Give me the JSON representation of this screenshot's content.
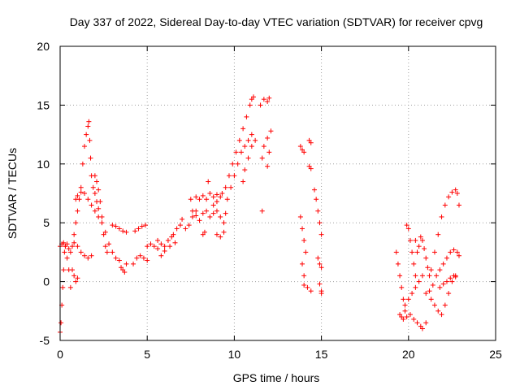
{
  "chart_data": {
    "type": "scatter",
    "title": "Day 337 of 2022, Sidereal Day-to-day VTEC variation (SDTVAR) for receiver cpvg",
    "xlabel": "GPS time / hours",
    "ylabel": "SDTVAR / TECUs",
    "xlim": [
      0,
      25
    ],
    "ylim": [
      -5,
      20
    ],
    "xticks": [
      0,
      5,
      10,
      15,
      20,
      25
    ],
    "yticks": [
      -5,
      0,
      5,
      10,
      15,
      20
    ],
    "grid": true,
    "marker": "+",
    "color": "#ff0000",
    "series": [
      {
        "name": "SDTVAR",
        "points": [
          [
            0.0,
            -4.3
          ],
          [
            0.05,
            -3.5
          ],
          [
            0.1,
            -2.0
          ],
          [
            0.15,
            -0.5
          ],
          [
            0.2,
            1.0
          ],
          [
            0.25,
            2.5
          ],
          [
            0.3,
            3.0
          ],
          [
            0.4,
            2.0
          ],
          [
            0.5,
            1.0
          ],
          [
            0.6,
            -0.5
          ],
          [
            0.0,
            3.0
          ],
          [
            0.1,
            3.2
          ],
          [
            0.2,
            3.3
          ],
          [
            0.3,
            3.0
          ],
          [
            0.4,
            3.2
          ],
          [
            0.5,
            2.8
          ],
          [
            0.6,
            2.5
          ],
          [
            0.7,
            3.0
          ],
          [
            0.8,
            3.3
          ],
          [
            0.8,
            4.0
          ],
          [
            0.9,
            5.0
          ],
          [
            1.0,
            6.0
          ],
          [
            1.1,
            7.0
          ],
          [
            1.2,
            8.0
          ],
          [
            1.3,
            10.0
          ],
          [
            1.4,
            11.5
          ],
          [
            1.5,
            12.5
          ],
          [
            1.6,
            13.2
          ],
          [
            1.65,
            13.6
          ],
          [
            1.7,
            12.0
          ],
          [
            1.75,
            10.5
          ],
          [
            1.8,
            9.0
          ],
          [
            1.9,
            8.0
          ],
          [
            2.0,
            7.5
          ],
          [
            2.1,
            6.8
          ],
          [
            2.2,
            6.2
          ],
          [
            0.9,
            7.0
          ],
          [
            1.0,
            7.3
          ],
          [
            1.2,
            7.6
          ],
          [
            1.4,
            7.5
          ],
          [
            1.6,
            7.0
          ],
          [
            1.8,
            6.5
          ],
          [
            2.0,
            6.0
          ],
          [
            2.2,
            5.5
          ],
          [
            2.4,
            5.0
          ],
          [
            2.6,
            4.2
          ],
          [
            2.8,
            3.2
          ],
          [
            3.0,
            2.5
          ],
          [
            1.0,
            3.0
          ],
          [
            1.2,
            2.5
          ],
          [
            1.4,
            2.2
          ],
          [
            1.6,
            2.0
          ],
          [
            1.8,
            2.2
          ],
          [
            2.0,
            9.0
          ],
          [
            2.1,
            8.5
          ],
          [
            2.2,
            7.8
          ],
          [
            2.3,
            6.8
          ],
          [
            2.4,
            5.5
          ],
          [
            2.5,
            4.0
          ],
          [
            2.6,
            3.0
          ],
          [
            2.7,
            2.5
          ],
          [
            0.7,
            1.0
          ],
          [
            0.8,
            0.5
          ],
          [
            0.9,
            0.0
          ],
          [
            1.0,
            0.3
          ],
          [
            3.0,
            4.8
          ],
          [
            3.2,
            4.7
          ],
          [
            3.4,
            4.5
          ],
          [
            3.6,
            4.3
          ],
          [
            3.8,
            4.2
          ],
          [
            3.2,
            2.0
          ],
          [
            3.4,
            1.8
          ],
          [
            3.5,
            1.2
          ],
          [
            3.6,
            1.0
          ],
          [
            3.7,
            0.8
          ],
          [
            3.8,
            1.5
          ],
          [
            4.2,
            1.5
          ],
          [
            4.4,
            2.0
          ],
          [
            4.6,
            2.2
          ],
          [
            4.8,
            2.0
          ],
          [
            5.0,
            1.8
          ],
          [
            4.3,
            4.3
          ],
          [
            4.5,
            4.5
          ],
          [
            4.7,
            4.7
          ],
          [
            4.9,
            4.8
          ],
          [
            5.0,
            3.0
          ],
          [
            5.2,
            3.2
          ],
          [
            5.4,
            3.0
          ],
          [
            5.6,
            3.5
          ],
          [
            5.8,
            3.2
          ],
          [
            6.0,
            3.0
          ],
          [
            6.2,
            3.5
          ],
          [
            6.4,
            3.8
          ],
          [
            6.6,
            3.3
          ],
          [
            5.6,
            2.8
          ],
          [
            5.8,
            2.2
          ],
          [
            6.0,
            2.6
          ],
          [
            6.3,
            3.0
          ],
          [
            6.5,
            4.0
          ],
          [
            6.7,
            4.5
          ],
          [
            6.9,
            4.8
          ],
          [
            7.0,
            5.3
          ],
          [
            7.2,
            4.5
          ],
          [
            7.4,
            4.8
          ],
          [
            7.6,
            5.5
          ],
          [
            7.8,
            6.0
          ],
          [
            7.5,
            7.0
          ],
          [
            7.8,
            7.2
          ],
          [
            8.0,
            7.0
          ],
          [
            8.2,
            7.3
          ],
          [
            8.4,
            7.0
          ],
          [
            8.6,
            7.5
          ],
          [
            8.8,
            7.2
          ],
          [
            9.0,
            7.4
          ],
          [
            9.2,
            7.2
          ],
          [
            7.6,
            6.0
          ],
          [
            7.8,
            5.6
          ],
          [
            8.0,
            5.2
          ],
          [
            8.2,
            5.8
          ],
          [
            8.4,
            6.0
          ],
          [
            8.6,
            5.5
          ],
          [
            8.8,
            5.8
          ],
          [
            9.0,
            6.0
          ],
          [
            8.5,
            8.5
          ],
          [
            8.8,
            6.5
          ],
          [
            9.0,
            6.8
          ],
          [
            9.2,
            5.5
          ],
          [
            9.4,
            5.0
          ],
          [
            9.5,
            5.8
          ],
          [
            8.2,
            4.0
          ],
          [
            8.3,
            4.2
          ],
          [
            9.0,
            4.0
          ],
          [
            9.2,
            3.8
          ],
          [
            9.4,
            4.2
          ],
          [
            9.3,
            7.5
          ],
          [
            9.5,
            8.0
          ],
          [
            9.7,
            9.0
          ],
          [
            9.9,
            10.0
          ],
          [
            10.1,
            11.0
          ],
          [
            10.3,
            12.0
          ],
          [
            10.5,
            13.0
          ],
          [
            10.7,
            14.0
          ],
          [
            10.9,
            15.0
          ],
          [
            11.0,
            15.5
          ],
          [
            11.1,
            15.7
          ],
          [
            9.6,
            7.0
          ],
          [
            9.8,
            8.0
          ],
          [
            10.0,
            9.0
          ],
          [
            10.2,
            10.0
          ],
          [
            10.4,
            11.0
          ],
          [
            10.6,
            11.5
          ],
          [
            10.8,
            12.0
          ],
          [
            11.0,
            12.5
          ],
          [
            10.5,
            8.5
          ],
          [
            10.6,
            9.5
          ],
          [
            10.8,
            10.5
          ],
          [
            11.0,
            11.5
          ],
          [
            11.2,
            12.0
          ],
          [
            11.5,
            15.0
          ],
          [
            11.7,
            15.5
          ],
          [
            11.9,
            15.3
          ],
          [
            12.0,
            15.6
          ],
          [
            11.6,
            10.5
          ],
          [
            11.7,
            11.5
          ],
          [
            11.9,
            12.2
          ],
          [
            12.1,
            12.8
          ],
          [
            11.6,
            6.0
          ],
          [
            11.9,
            9.8
          ],
          [
            12.0,
            11.0
          ],
          [
            13.8,
            11.5
          ],
          [
            13.9,
            11.2
          ],
          [
            14.0,
            11.0
          ],
          [
            14.3,
            12.0
          ],
          [
            14.4,
            11.8
          ],
          [
            14.3,
            9.8
          ],
          [
            14.4,
            9.6
          ],
          [
            13.8,
            5.5
          ],
          [
            13.9,
            4.5
          ],
          [
            14.0,
            3.5
          ],
          [
            14.1,
            2.5
          ],
          [
            13.9,
            1.5
          ],
          [
            14.0,
            0.5
          ],
          [
            14.0,
            -0.3
          ],
          [
            14.2,
            -0.5
          ],
          [
            14.4,
            -0.8
          ],
          [
            14.6,
            7.8
          ],
          [
            14.7,
            7.0
          ],
          [
            14.8,
            6.0
          ],
          [
            14.9,
            5.0
          ],
          [
            15.0,
            4.0
          ],
          [
            14.8,
            2.0
          ],
          [
            14.9,
            1.5
          ],
          [
            15.0,
            1.2
          ],
          [
            14.9,
            -0.2
          ],
          [
            15.0,
            -0.8
          ],
          [
            15.0,
            -1.0
          ],
          [
            19.3,
            2.5
          ],
          [
            19.4,
            1.5
          ],
          [
            19.5,
            0.5
          ],
          [
            19.6,
            -0.5
          ],
          [
            19.7,
            -1.5
          ],
          [
            19.8,
            -2.5
          ],
          [
            19.5,
            -2.8
          ],
          [
            19.6,
            -3.0
          ],
          [
            19.8,
            -2.0
          ],
          [
            20.0,
            -1.5
          ],
          [
            20.2,
            -1.0
          ],
          [
            20.4,
            -0.5
          ],
          [
            20.6,
            0.0
          ],
          [
            20.8,
            0.5
          ],
          [
            19.7,
            -3.2
          ],
          [
            19.9,
            -3.0
          ],
          [
            20.1,
            -2.8
          ],
          [
            20.3,
            -3.2
          ],
          [
            20.5,
            -3.5
          ],
          [
            20.7,
            -3.8
          ],
          [
            20.8,
            -4.0
          ],
          [
            21.0,
            -3.5
          ],
          [
            19.9,
            4.8
          ],
          [
            20.0,
            4.5
          ],
          [
            20.1,
            3.5
          ],
          [
            20.2,
            2.5
          ],
          [
            20.3,
            1.5
          ],
          [
            20.4,
            0.5
          ],
          [
            20.4,
            3.5
          ],
          [
            20.5,
            2.5
          ],
          [
            20.6,
            3.0
          ],
          [
            20.7,
            3.8
          ],
          [
            20.8,
            3.5
          ],
          [
            20.9,
            2.8
          ],
          [
            21.0,
            2.0
          ],
          [
            21.1,
            1.2
          ],
          [
            21.2,
            0.5
          ],
          [
            21.0,
            -1.0
          ],
          [
            21.2,
            -0.8
          ],
          [
            21.4,
            -0.3
          ],
          [
            21.6,
            0.5
          ],
          [
            21.8,
            1.0
          ],
          [
            22.0,
            1.5
          ],
          [
            22.2,
            2.0
          ],
          [
            22.4,
            2.5
          ],
          [
            22.6,
            2.7
          ],
          [
            22.8,
            2.5
          ],
          [
            22.9,
            2.2
          ],
          [
            21.3,
            -1.5
          ],
          [
            21.5,
            -2.0
          ],
          [
            21.7,
            -2.5
          ],
          [
            21.9,
            -2.8
          ],
          [
            22.1,
            -2.0
          ],
          [
            22.3,
            -1.0
          ],
          [
            22.5,
            0.0
          ],
          [
            22.7,
            0.5
          ],
          [
            21.3,
            1.0
          ],
          [
            21.5,
            2.5
          ],
          [
            21.7,
            4.0
          ],
          [
            21.9,
            5.5
          ],
          [
            22.1,
            6.5
          ],
          [
            22.3,
            7.2
          ],
          [
            22.5,
            7.6
          ],
          [
            22.7,
            7.8
          ],
          [
            22.8,
            7.5
          ],
          [
            22.9,
            6.5
          ],
          [
            21.8,
            -0.5
          ],
          [
            22.0,
            -0.2
          ],
          [
            22.2,
            0.0
          ],
          [
            22.4,
            0.3
          ],
          [
            22.6,
            0.5
          ],
          [
            22.7,
            0.4
          ]
        ]
      }
    ]
  }
}
